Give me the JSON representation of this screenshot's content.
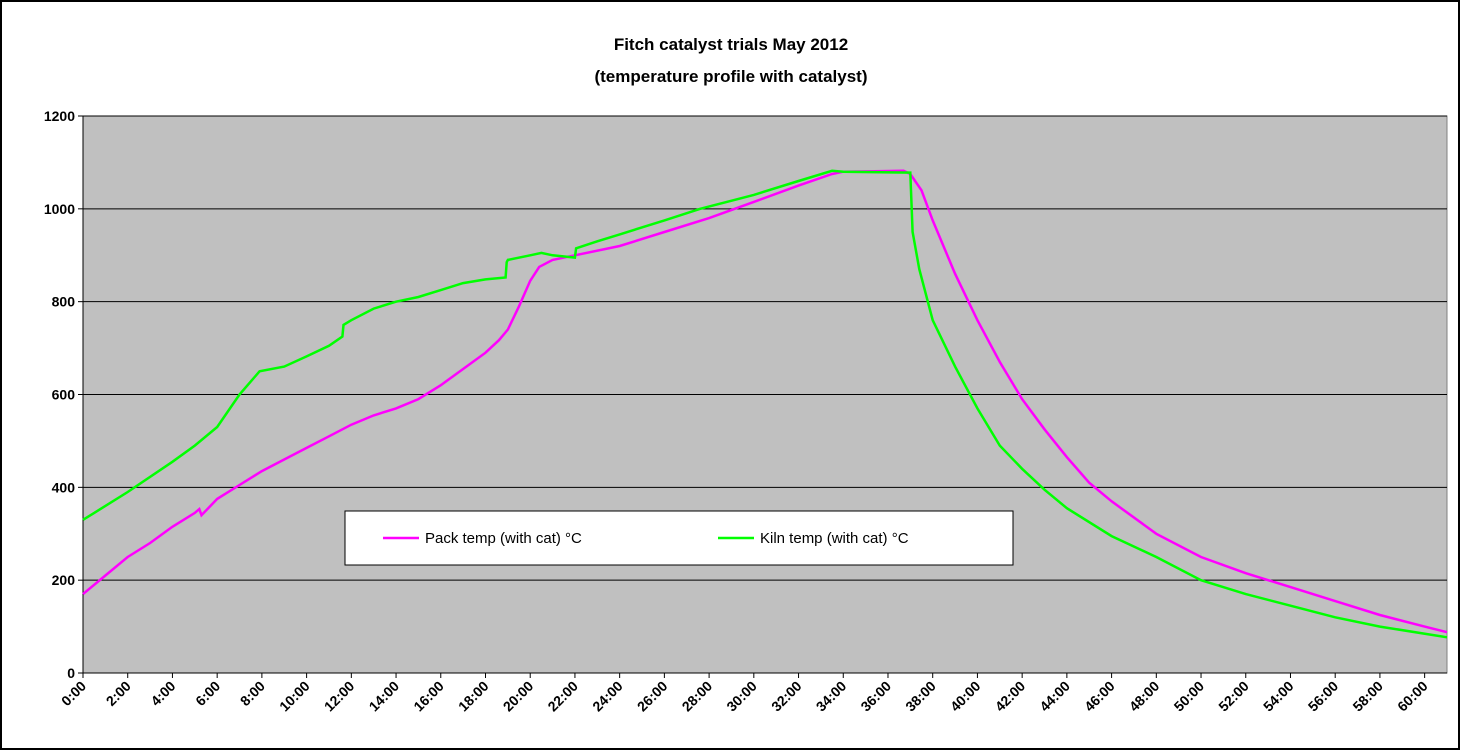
{
  "chart_data": {
    "type": "line",
    "title": "Fitch catalyst trials May 2012",
    "subtitle": "(temperature profile with catalyst)",
    "xlim": [
      0,
      61
    ],
    "ylim": [
      0,
      1200
    ],
    "yticks": [
      0,
      200,
      400,
      600,
      800,
      1000,
      1200
    ],
    "xticks": [
      {
        "value": 0,
        "label": "0:00"
      },
      {
        "value": 2,
        "label": "2:00"
      },
      {
        "value": 4,
        "label": "4:00"
      },
      {
        "value": 6,
        "label": "6:00"
      },
      {
        "value": 8,
        "label": "8:00"
      },
      {
        "value": 10,
        "label": "10:00"
      },
      {
        "value": 12,
        "label": "12:00"
      },
      {
        "value": 14,
        "label": "14:00"
      },
      {
        "value": 16,
        "label": "16:00"
      },
      {
        "value": 18,
        "label": "18:00"
      },
      {
        "value": 20,
        "label": "20:00"
      },
      {
        "value": 22,
        "label": "22:00"
      },
      {
        "value": 24,
        "label": "24:00"
      },
      {
        "value": 26,
        "label": "26:00"
      },
      {
        "value": 28,
        "label": "28:00"
      },
      {
        "value": 30,
        "label": "30:00"
      },
      {
        "value": 32,
        "label": "32:00"
      },
      {
        "value": 34,
        "label": "34:00"
      },
      {
        "value": 36,
        "label": "36:00"
      },
      {
        "value": 38,
        "label": "38:00"
      },
      {
        "value": 40,
        "label": "40:00"
      },
      {
        "value": 42,
        "label": "42:00"
      },
      {
        "value": 44,
        "label": "44:00"
      },
      {
        "value": 46,
        "label": "46:00"
      },
      {
        "value": 48,
        "label": "48:00"
      },
      {
        "value": 50,
        "label": "50:00"
      },
      {
        "value": 52,
        "label": "52:00"
      },
      {
        "value": 54,
        "label": "54:00"
      },
      {
        "value": 56,
        "label": "56:00"
      },
      {
        "value": 58,
        "label": "58:00"
      },
      {
        "value": 60,
        "label": "60:00"
      }
    ],
    "grid": true,
    "background": "#c0c0c0",
    "series": [
      {
        "name": "Pack temp (with cat) °C",
        "color": "#ff00ff",
        "x": [
          0,
          1,
          2,
          3,
          4,
          5,
          5.2,
          5.3,
          6,
          7,
          8,
          9,
          10,
          11,
          12,
          13,
          14,
          15,
          16,
          17,
          18,
          18.6,
          19,
          19.5,
          20,
          20.4,
          21,
          22,
          24,
          26,
          28,
          30,
          32,
          33.5,
          34,
          36.7,
          37,
          37.5,
          38,
          39,
          40,
          41,
          42,
          43,
          44,
          45,
          46,
          48,
          50,
          52,
          54,
          56,
          58,
          60,
          61
        ],
        "values": [
          170,
          210,
          250,
          280,
          315,
          345,
          353,
          340,
          375,
          405,
          435,
          460,
          485,
          510,
          535,
          555,
          570,
          590,
          620,
          655,
          690,
          717,
          740,
          790,
          845,
          875,
          890,
          900,
          920,
          950,
          980,
          1015,
          1050,
          1075,
          1080,
          1082,
          1075,
          1040,
          975,
          860,
          760,
          670,
          590,
          525,
          465,
          410,
          370,
          300,
          250,
          215,
          185,
          155,
          125,
          100,
          88
        ]
      },
      {
        "name": "Kiln temp (with cat) °C",
        "color": "#00ff00",
        "x": [
          0,
          0.5,
          2,
          4,
          5,
          6,
          7,
          7.9,
          9,
          10,
          11,
          11.6,
          11.65,
          12,
          13,
          14,
          15,
          16,
          17,
          18,
          18.9,
          18.95,
          19,
          20,
          20.5,
          21,
          22,
          22.05,
          23,
          24,
          26,
          27.6,
          30,
          32,
          33.5,
          34,
          37,
          37.1,
          37.4,
          38,
          39,
          40,
          41,
          42,
          43,
          44,
          46,
          48,
          50,
          52,
          54,
          56,
          58,
          61
        ],
        "values": [
          330,
          345,
          390,
          455,
          490,
          530,
          600,
          650,
          660,
          682,
          705,
          725,
          750,
          760,
          785,
          800,
          810,
          825,
          840,
          848,
          852,
          885,
          890,
          900,
          905,
          900,
          895,
          915,
          930,
          945,
          975,
          1000,
          1030,
          1060,
          1082,
          1080,
          1078,
          950,
          870,
          760,
          660,
          570,
          490,
          440,
          395,
          355,
          295,
          250,
          200,
          170,
          145,
          120,
          100,
          77
        ]
      }
    ],
    "legend": "inside-lower-center"
  }
}
